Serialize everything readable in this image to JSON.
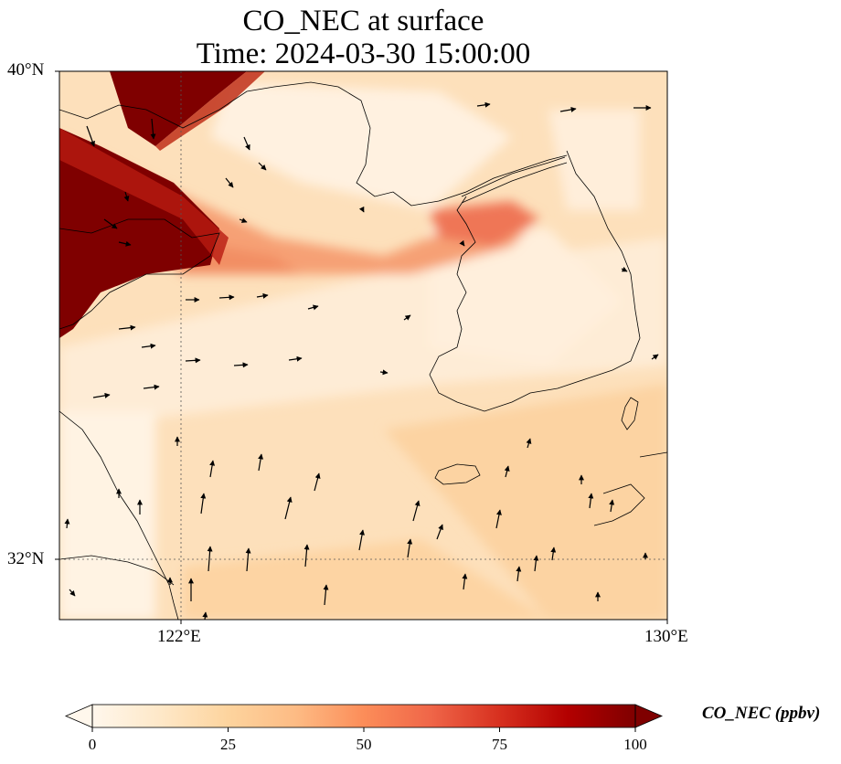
{
  "title_line1": "CO_NEC at surface",
  "title_line2": "Time: 2024-03-30 15:00:00",
  "lat_labels": [
    "40°N",
    "32°N"
  ],
  "lon_labels": [
    "122°E",
    "130°E"
  ],
  "colorbar": {
    "label": "CO_NEC (ppbv)",
    "ticks": [
      "0",
      "25",
      "50",
      "75",
      "100"
    ],
    "colormap": "OrRd",
    "extend": "both",
    "min": 0,
    "max": 100
  },
  "map": {
    "lon_range": [
      120,
      130
    ],
    "lat_range": [
      31,
      40
    ],
    "variable": "CO_NEC",
    "level": "surface",
    "wind_vectors": true,
    "gridlines": "dotted"
  }
}
